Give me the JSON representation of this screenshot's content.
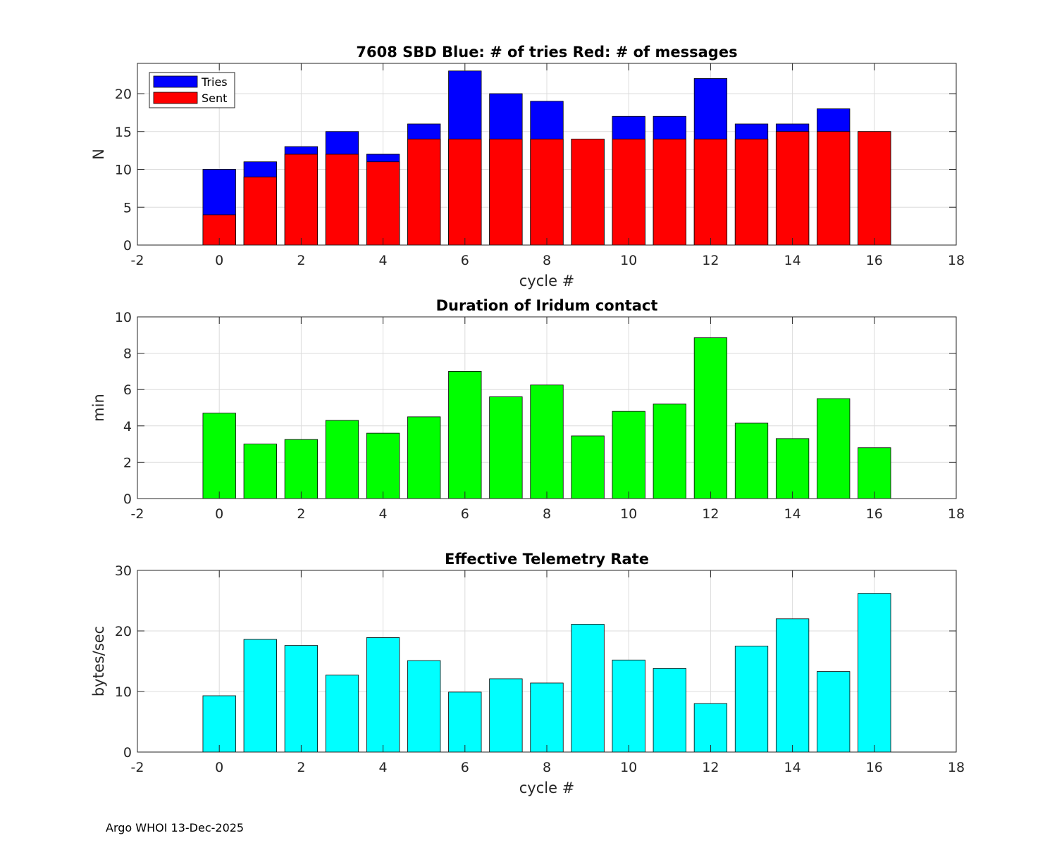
{
  "footer_text": "Argo WHOI 13-Dec-2025",
  "chart_data": [
    {
      "type": "bar",
      "title": "7608 SBD  Blue: # of tries   Red: # of messages",
      "xlabel": "cycle #",
      "ylabel": "N",
      "xlim": [
        -2,
        18
      ],
      "ylim": [
        0,
        24
      ],
      "xticks": [
        -2,
        0,
        2,
        4,
        6,
        8,
        10,
        12,
        14,
        16,
        18
      ],
      "yticks": [
        0,
        5,
        10,
        15,
        20
      ],
      "grid": true,
      "legend": "top-left",
      "x": [
        0,
        1,
        2,
        3,
        4,
        5,
        6,
        7,
        8,
        9,
        10,
        11,
        12,
        13,
        14,
        15,
        16
      ],
      "series": [
        {
          "name": "Tries",
          "color": "#0000ff",
          "values": [
            10,
            11,
            13,
            15,
            12,
            16,
            23,
            20,
            19,
            14,
            17,
            17,
            22,
            16,
            16,
            18,
            15
          ]
        },
        {
          "name": "Sent",
          "color": "#ff0000",
          "values": [
            4,
            9,
            12,
            12,
            11,
            14,
            14,
            14,
            14,
            14,
            14,
            14,
            14,
            14,
            15,
            15,
            15
          ]
        }
      ]
    },
    {
      "type": "bar",
      "title": "Duration of Iridum contact",
      "xlabel": "",
      "ylabel": "min",
      "xlim": [
        -2,
        18
      ],
      "ylim": [
        0,
        10
      ],
      "xticks": [
        -2,
        0,
        2,
        4,
        6,
        8,
        10,
        12,
        14,
        16,
        18
      ],
      "yticks": [
        0,
        2,
        4,
        6,
        8,
        10
      ],
      "grid": true,
      "x": [
        0,
        1,
        2,
        3,
        4,
        5,
        6,
        7,
        8,
        9,
        10,
        11,
        12,
        13,
        14,
        15,
        16
      ],
      "series": [
        {
          "name": "Duration",
          "color": "#00ff00",
          "values": [
            4.7,
            3.0,
            3.25,
            4.3,
            3.6,
            4.5,
            7.0,
            5.6,
            6.25,
            3.45,
            4.8,
            5.2,
            8.85,
            4.15,
            3.3,
            5.5,
            2.8
          ]
        }
      ]
    },
    {
      "type": "bar",
      "title": "Effective Telemetry Rate",
      "xlabel": "cycle #",
      "ylabel": "bytes/sec",
      "xlim": [
        -2,
        18
      ],
      "ylim": [
        0,
        30
      ],
      "xticks": [
        -2,
        0,
        2,
        4,
        6,
        8,
        10,
        12,
        14,
        16,
        18
      ],
      "yticks": [
        0,
        10,
        20,
        30
      ],
      "grid": true,
      "x": [
        0,
        1,
        2,
        3,
        4,
        5,
        6,
        7,
        8,
        9,
        10,
        11,
        12,
        13,
        14,
        15,
        16
      ],
      "series": [
        {
          "name": "Rate",
          "color": "#00ffff",
          "values": [
            9.3,
            18.6,
            17.6,
            12.7,
            18.9,
            15.1,
            9.9,
            12.1,
            11.4,
            21.1,
            15.2,
            13.8,
            8.0,
            17.5,
            22.0,
            13.3,
            26.2
          ]
        }
      ]
    }
  ]
}
